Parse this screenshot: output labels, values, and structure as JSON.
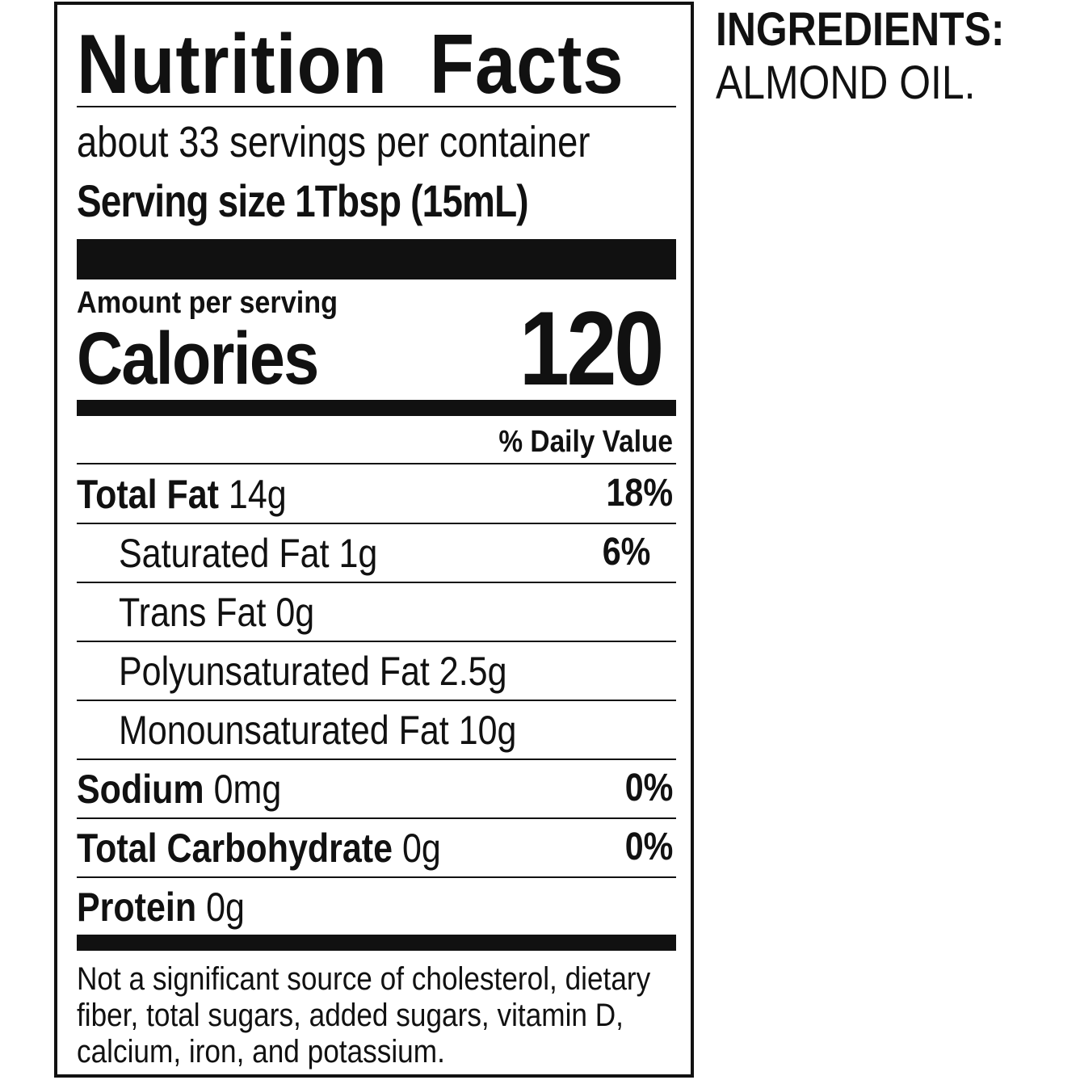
{
  "label": {
    "title": "Nutrition Facts",
    "servings_per_container": "about 33 servings per container",
    "serving_size": "Serving size 1Tbsp (15mL)",
    "amount_per_serving": "Amount per serving",
    "calories_label": "Calories",
    "calories_value": "120",
    "daily_value_header": "% Daily Value",
    "nutrients": [
      {
        "name": "Total Fat",
        "amount": "14g",
        "dv": "18%",
        "bold": true,
        "indent": false
      },
      {
        "name": "Saturated Fat",
        "amount": "1g",
        "dv": "6%",
        "bold": false,
        "indent": true
      },
      {
        "name": "Trans Fat",
        "amount": "0g",
        "dv": "",
        "bold": false,
        "indent": true
      },
      {
        "name": "Polyunsaturated Fat",
        "amount": "2.5g",
        "dv": "",
        "bold": false,
        "indent": true
      },
      {
        "name": "Monounsaturated Fat",
        "amount": "10g",
        "dv": "",
        "bold": false,
        "indent": true
      },
      {
        "name": "Sodium",
        "amount": "0mg",
        "dv": "0%",
        "bold": true,
        "indent": false
      },
      {
        "name": "Total Carbohydrate",
        "amount": "0g",
        "dv": "0%",
        "bold": true,
        "indent": false
      },
      {
        "name": "Protein",
        "amount": "0g",
        "dv": "",
        "bold": true,
        "indent": false
      }
    ],
    "footnote": [
      "Not a significant source of cholesterol, dietary",
      "fiber, total sugars, added sugars, vitamin D,",
      "calcium, iron, and potassium."
    ]
  },
  "ingredients": {
    "heading": "INGREDIENTS:",
    "text": "ALMOND OIL."
  }
}
